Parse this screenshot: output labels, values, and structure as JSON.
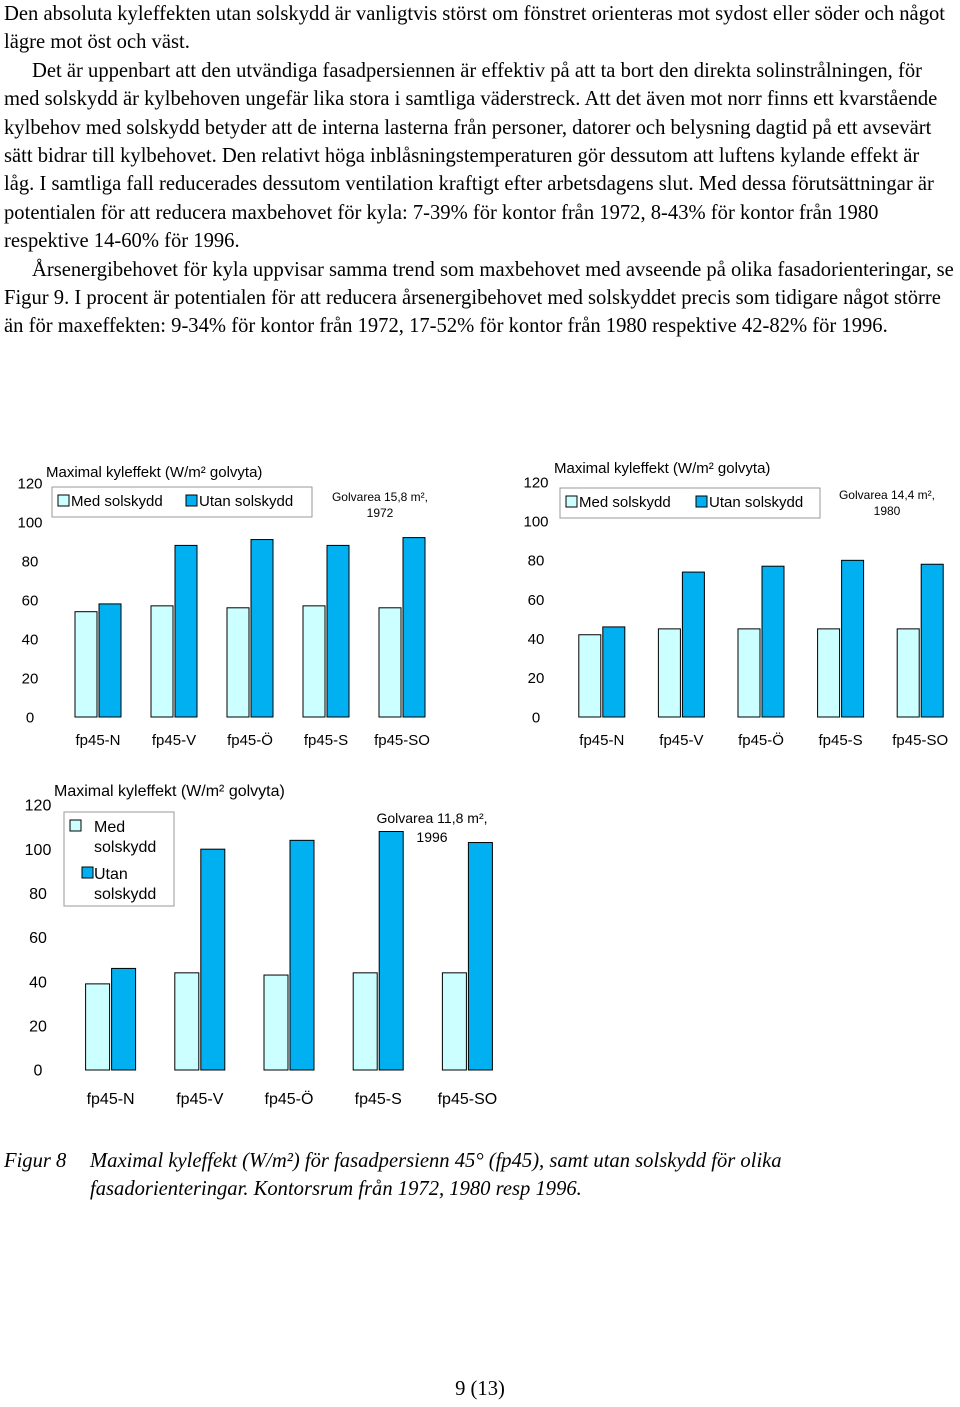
{
  "text": {
    "p1": "Den absoluta kyleffekten utan solskydd är vanligtvis störst om fönstret orienteras mot sydost eller söder och något lägre mot öst och väst.",
    "p2": "Det är uppenbart att den utvändiga fasadpersiennen är effektiv på att ta bort den direkta solinstrålningen, för med solskydd är kylbehoven ungefär lika stora i samtliga väderstreck. Att det även mot norr finns ett kvarstående kylbehov med solskydd betyder att de interna lasterna från personer, datorer och belysning dagtid på ett avsevärt sätt bidrar till kylbehovet. Den relativt höga inblåsningstemperaturen gör dessutom att luftens kylande effekt är låg. I samtliga fall reducerades dessutom ventilation kraftigt efter arbetsdagens slut. Med dessa förutsättningar är potentialen för att reducera maxbehovet för kyla: 7-39% för kontor från 1972, 8-43% för kontor från 1980 respektive 14-60% för 1996.",
    "p3": "Årsenergibehovet för kyla uppvisar samma trend som maxbehovet med avseende på olika fasadorienteringar, se Figur 9. I procent är potentialen för att reducera årsenergibehovet med solskyddet precis som tidigare något större än för maxeffekten: 9-34% för kontor från 1972, 17-52% för kontor från 1980 respektive 42-82% för 1996."
  },
  "caption": {
    "label": "Figur 8",
    "text": "Maximal kyleffekt (W/m²) för fasadpersienn 45° (fp45), samt utan solskydd för olika fasadorienteringar. Kontorsrum från 1972, 1980 resp 1996."
  },
  "page_number": "9 (13)",
  "colors": {
    "med_solskydd": "#ccffff",
    "utan_solskydd": "#00b0f0",
    "outline": "#000000"
  },
  "chart_data": [
    {
      "type": "bar",
      "title": "Maximal kyleffekt (W/m² golvyta)",
      "annotation": "Golvarea 15,8 m², 1972",
      "categories": [
        "fp45-N",
        "fp45-V",
        "fp45-Ö",
        "fp45-S",
        "fp45-SO"
      ],
      "series": [
        {
          "name": "Med solskydd",
          "values": [
            54,
            57,
            56,
            57,
            56
          ]
        },
        {
          "name": "Utan solskydd",
          "values": [
            58,
            88,
            91,
            88,
            92
          ]
        }
      ],
      "yticks": [
        "0",
        "20",
        "40",
        "60",
        "80",
        "100",
        "120"
      ],
      "ylim": [
        0,
        120
      ],
      "legend": "top"
    },
    {
      "type": "bar",
      "title": "Maximal kyleffekt (W/m² golvyta)",
      "annotation": "Golvarea 14,4 m², 1980",
      "categories": [
        "fp45-N",
        "fp45-V",
        "fp45-Ö",
        "fp45-S",
        "fp45-SO"
      ],
      "series": [
        {
          "name": "Med solskydd",
          "values": [
            42,
            45,
            45,
            45,
            45
          ]
        },
        {
          "name": "Utan solskydd",
          "values": [
            46,
            74,
            77,
            80,
            78
          ]
        }
      ],
      "yticks": [
        "0",
        "20",
        "40",
        "60",
        "80",
        "100",
        "120"
      ],
      "ylim": [
        0,
        120
      ],
      "legend": "top"
    },
    {
      "type": "bar",
      "title": "Maximal kyleffekt (W/m² golvyta)",
      "annotation": "Golvarea 11,8 m², 1996",
      "categories": [
        "fp45-N",
        "fp45-V",
        "fp45-Ö",
        "fp45-S",
        "fp45-SO"
      ],
      "series": [
        {
          "name": "Med solskydd",
          "values": [
            39,
            44,
            43,
            44,
            44
          ]
        },
        {
          "name": "Utan solskydd",
          "values": [
            46,
            100,
            104,
            108,
            103
          ]
        }
      ],
      "yticks": [
        "0",
        "20",
        "40",
        "60",
        "80",
        "100",
        "120"
      ],
      "ylim": [
        0,
        120
      ],
      "legend": "top-left"
    }
  ]
}
